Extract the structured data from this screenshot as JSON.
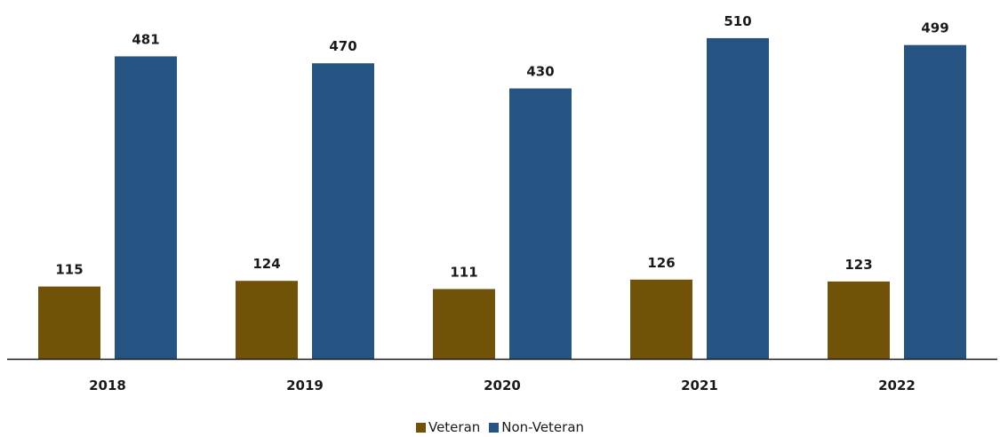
{
  "colors": {
    "veteran": "#705309",
    "non_veteran": "#255482",
    "axis": "#1a1a1a",
    "background": "#ffffff"
  },
  "legend": {
    "veteran_label": "Veteran",
    "non_veteran_label": "Non-Veteran",
    "placement": "bottom-center"
  },
  "chart_data": {
    "type": "bar",
    "title": "",
    "xlabel": "",
    "ylabel": "",
    "categories": [
      "2018",
      "2019",
      "2020",
      "2021",
      "2022"
    ],
    "series": [
      {
        "name": "Veteran",
        "values": [
          115,
          124,
          111,
          126,
          123
        ]
      },
      {
        "name": "Non-Veteran",
        "values": [
          481,
          470,
          430,
          510,
          499
        ]
      }
    ],
    "ylim": [
      0,
      560
    ],
    "grid": false,
    "y_axis_visible": false,
    "data_labels": true
  }
}
